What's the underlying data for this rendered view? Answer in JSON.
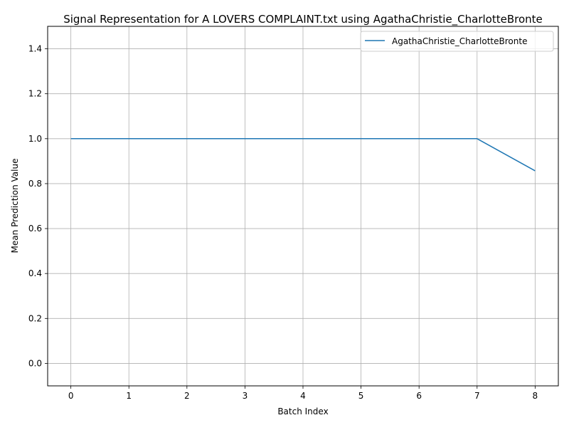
{
  "chart_data": {
    "type": "line",
    "title": "Signal Representation for A LOVERS COMPLAINT.txt using AgathaChristie_CharlotteBronte",
    "xlabel": "Batch Index",
    "ylabel": "Mean Prediction Value",
    "x": [
      0,
      1,
      2,
      3,
      4,
      5,
      6,
      7,
      8
    ],
    "xlim": [
      -0.4,
      8.4
    ],
    "ylim": [
      -0.1,
      1.5
    ],
    "xticks": [
      "0",
      "1",
      "2",
      "3",
      "4",
      "5",
      "6",
      "7",
      "8"
    ],
    "yticks": [
      "0.0",
      "0.2",
      "0.4",
      "0.6",
      "0.8",
      "1.0",
      "1.2",
      "1.4"
    ],
    "grid": true,
    "legend_position": "upper right",
    "series": [
      {
        "name": "AgathaChristie_CharlotteBronte",
        "color": "#1f77b4",
        "values": [
          1.0,
          1.0,
          1.0,
          1.0,
          1.0,
          1.0,
          1.0,
          1.0,
          0.857
        ]
      }
    ]
  }
}
